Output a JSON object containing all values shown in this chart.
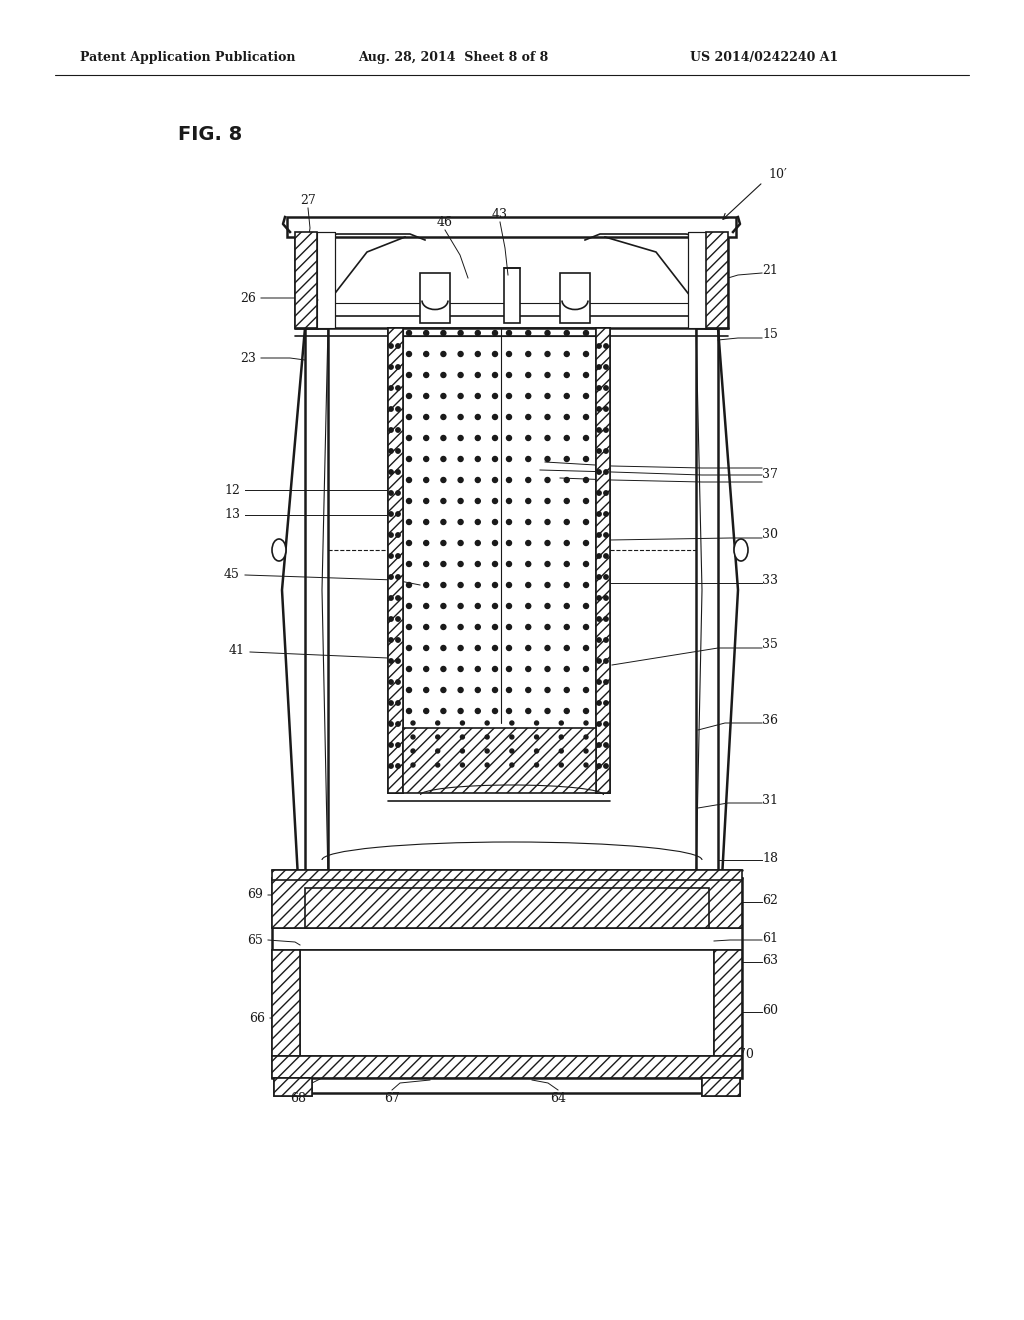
{
  "bg_color": "#ffffff",
  "line_color": "#1a1a1a",
  "header_left": "Patent Application Publication",
  "header_mid": "Aug. 28, 2014  Sheet 8 of 8",
  "header_right": "US 2014/0242240 A1",
  "fig_label": "FIG. 8",
  "labels": [
    "10'",
    "27",
    "46",
    "43",
    "21",
    "15",
    "26",
    "23",
    "12",
    "13",
    "37",
    "30",
    "45",
    "33",
    "41",
    "35",
    "36",
    "31",
    "18",
    "69",
    "62",
    "65",
    "61",
    "63",
    "66",
    "60",
    "70",
    "68",
    "67",
    "64"
  ]
}
